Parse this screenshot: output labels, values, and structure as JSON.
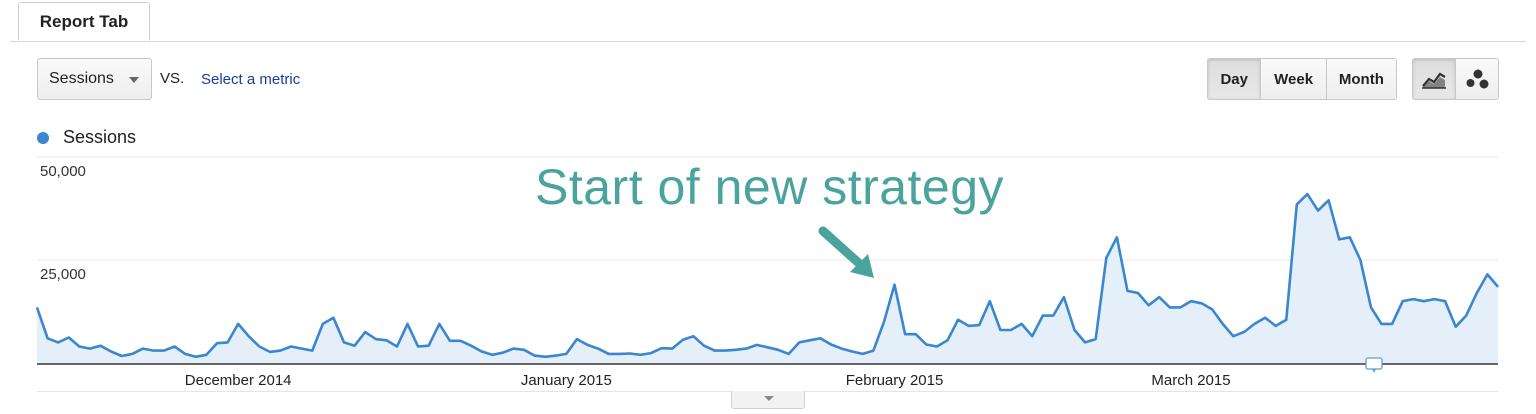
{
  "tab": {
    "label": "Report Tab"
  },
  "controls": {
    "metric_select": "Sessions",
    "vs_label": "VS.",
    "select_metric_link": "Select a metric",
    "granularity": [
      {
        "label": "Day",
        "active": true
      },
      {
        "label": "Week",
        "active": false
      },
      {
        "label": "Month",
        "active": false
      }
    ],
    "chart_type_icons": [
      "line-chart-icon",
      "motion-chart-icon"
    ]
  },
  "legend": {
    "series_name": "Sessions",
    "color": "#3a87d0"
  },
  "annotation": {
    "text": "Start of new strategy",
    "color": "#4aa39c"
  },
  "chart_data": {
    "type": "area",
    "title": "",
    "xlabel": "",
    "ylabel": "",
    "ylim": [
      0,
      50000
    ],
    "yticks": [
      {
        "value": 50000,
        "label": "50,000"
      },
      {
        "value": 25000,
        "label": "25,000"
      }
    ],
    "x_start_date": "2014-11-12",
    "x_labels": [
      {
        "label": "December 2014",
        "index": 19
      },
      {
        "label": "January 2015",
        "index": 50
      },
      {
        "label": "February 2015",
        "index": 81
      },
      {
        "label": "March 2015",
        "index": 109
      }
    ],
    "series": [
      {
        "name": "Sessions",
        "color": "#3a87d0",
        "values": [
          13500,
          6000,
          5000,
          6200,
          4000,
          3500,
          4200,
          2800,
          1700,
          2200,
          3500,
          3000,
          3000,
          4000,
          2200,
          1500,
          2000,
          4800,
          5000,
          9500,
          6500,
          4000,
          2700,
          3000,
          4000,
          3500,
          3000,
          9500,
          11000,
          5000,
          4200,
          7500,
          5800,
          5500,
          4000,
          9500,
          4000,
          4200,
          9500,
          5400,
          5400,
          4200,
          2800,
          2000,
          2500,
          3500,
          3200,
          1800,
          1500,
          1800,
          2200,
          5800,
          4400,
          3500,
          2200,
          2200,
          2300,
          2000,
          2400,
          3600,
          3500,
          5600,
          6500,
          4200,
          3000,
          3000,
          3200,
          3500,
          4400,
          3800,
          3200,
          2200,
          5000,
          5500,
          6000,
          4500,
          3500,
          2800,
          2200,
          3000,
          10000,
          19000,
          7000,
          7000,
          4500,
          4000,
          5500,
          10500,
          9000,
          9200,
          15000,
          8000,
          8000,
          9500,
          6500,
          11500,
          11500,
          16000,
          8000,
          5000,
          5800,
          25500,
          30500,
          17500,
          17000,
          14000,
          16000,
          13500,
          13500,
          15000,
          14500,
          13000,
          9500,
          6500,
          7500,
          9500,
          11000,
          9000,
          10500,
          38500,
          41000,
          37000,
          39500,
          30000,
          30500,
          25000,
          13500,
          9500,
          9500,
          15000,
          15500,
          15000,
          15500,
          15000,
          8800,
          11500,
          17000,
          21500,
          18500
        ]
      }
    ],
    "grid": true,
    "legend_position": "top-left"
  }
}
